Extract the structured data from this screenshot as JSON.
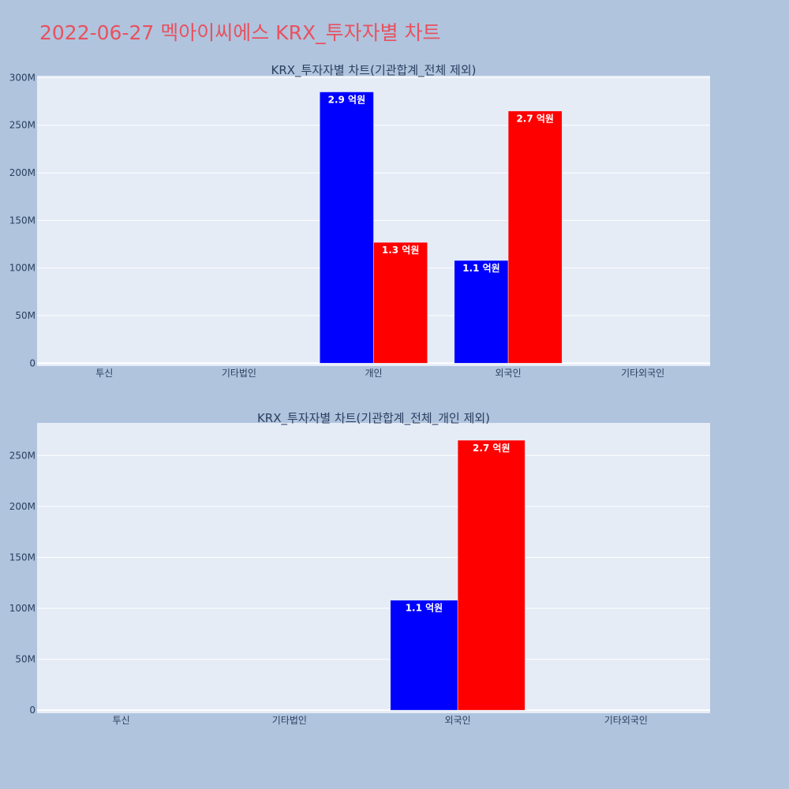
{
  "page": {
    "title": "2022-06-27 멕아이씨에스 KRX_투자자별 차트",
    "background": "#b0c4de",
    "title_color": "#e8515f"
  },
  "chart_data": [
    {
      "type": "bar",
      "title": "KRX_투자자별 차트(기관합계_전체 제외)",
      "categories": [
        "투신",
        "기타법인",
        "개인",
        "외국인",
        "기타외국인"
      ],
      "series": [
        {
          "color": "#0000ff",
          "values": [
            0,
            0,
            285000000,
            108000000,
            0
          ],
          "labels": [
            "",
            "",
            "2.9 억원",
            "1.1 억원",
            ""
          ]
        },
        {
          "color": "#ff0000",
          "values": [
            0,
            0,
            127000000,
            265000000,
            0
          ],
          "labels": [
            "",
            "",
            "1.3 억원",
            "2.7 억원",
            ""
          ]
        }
      ],
      "yticks": [
        0,
        50000000,
        100000000,
        150000000,
        200000000,
        250000000,
        300000000
      ],
      "ytick_labels": [
        "0",
        "50M",
        "100M",
        "150M",
        "200M",
        "250M",
        "300M"
      ],
      "ylim": [
        -3000000,
        302000000
      ],
      "grid": true,
      "plot_bg": "#e5ecf6"
    },
    {
      "type": "bar",
      "title": "KRX_투자자별 차트(기관합계_전체_개인 제외)",
      "categories": [
        "투신",
        "기타법인",
        "외국인",
        "기타외국인"
      ],
      "series": [
        {
          "color": "#0000ff",
          "values": [
            0,
            0,
            108000000,
            0
          ],
          "labels": [
            "",
            "",
            "1.1 억원",
            ""
          ]
        },
        {
          "color": "#ff0000",
          "values": [
            0,
            0,
            265000000,
            0
          ],
          "labels": [
            "",
            "",
            "2.7 억원",
            ""
          ]
        }
      ],
      "yticks": [
        0,
        50000000,
        100000000,
        150000000,
        200000000,
        250000000
      ],
      "ytick_labels": [
        "0",
        "50M",
        "100M",
        "150M",
        "200M",
        "250M"
      ],
      "ylim": [
        -3000000,
        282000000
      ],
      "grid": true,
      "plot_bg": "#e5ecf6"
    }
  ]
}
